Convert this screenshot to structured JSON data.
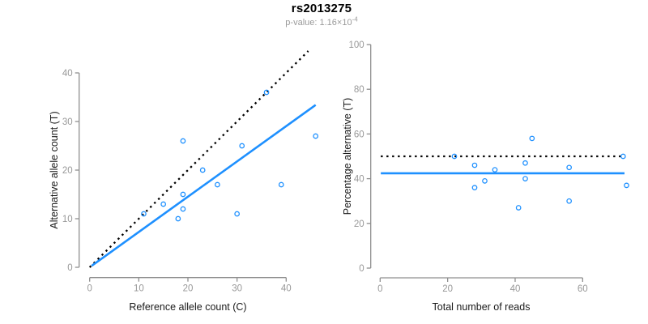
{
  "header": {
    "title": "rs2013275",
    "subtitle": {
      "text": "p-value: 1.16×10",
      "exponent": "-4"
    }
  },
  "colors": {
    "point_blue": "#1E90FF",
    "fit_blue": "#1E90FF",
    "dotted_black": "#000000",
    "axis_gray": "#8f8f8f",
    "tick_text_gray": "#989898"
  },
  "chart_data": [
    {
      "type": "scatter",
      "panel": "left",
      "xlabel": "Reference allele count (C)",
      "ylabel": "Alternative allele count (T)",
      "xlim": [
        0,
        46
      ],
      "ylim": [
        0,
        44.5
      ],
      "xticks": [
        0,
        10,
        20,
        30,
        40
      ],
      "yticks": [
        0,
        10,
        20,
        30,
        40
      ],
      "grid": false,
      "points": [
        [
          11,
          11
        ],
        [
          15,
          13
        ],
        [
          18,
          10
        ],
        [
          19,
          12
        ],
        [
          19,
          15
        ],
        [
          19,
          26
        ],
        [
          23,
          20
        ],
        [
          26,
          17
        ],
        [
          30,
          11
        ],
        [
          31,
          25
        ],
        [
          36,
          36
        ],
        [
          39,
          17
        ],
        [
          46,
          27
        ]
      ],
      "lines": [
        {
          "name": "identity-line",
          "style": "dotted",
          "color_key": "dotted_black",
          "x1": 0,
          "y1": 0,
          "x2": 44.5,
          "y2": 44.5
        },
        {
          "name": "fit-line",
          "style": "solid",
          "color_key": "fit_blue",
          "x1": 0.4,
          "y1": 0.3,
          "x2": 46,
          "y2": 33.4
        }
      ]
    },
    {
      "type": "scatter",
      "panel": "right",
      "xlabel": "Total number of reads",
      "ylabel": "Percentage alternative (T)",
      "xlim": [
        0,
        73.5
      ],
      "ylim": [
        0,
        100
      ],
      "xticks": [
        0,
        20,
        40,
        60
      ],
      "yticks": [
        0,
        20,
        40,
        60,
        80,
        100
      ],
      "grid": false,
      "points": [
        [
          22,
          50
        ],
        [
          28,
          46
        ],
        [
          28,
          36
        ],
        [
          31,
          39
        ],
        [
          34,
          44
        ],
        [
          41,
          27
        ],
        [
          43,
          47
        ],
        [
          43,
          40
        ],
        [
          45,
          58
        ],
        [
          56,
          45
        ],
        [
          56,
          30
        ],
        [
          72,
          50
        ],
        [
          73,
          37
        ]
      ],
      "lines": [
        {
          "name": "expected-line",
          "style": "dotted",
          "color_key": "dotted_black",
          "x1": 0.2,
          "y1": 50,
          "x2": 72.4,
          "y2": 50
        },
        {
          "name": "fit-line",
          "style": "solid",
          "color_key": "fit_blue",
          "x1": 0.2,
          "y1": 42.4,
          "x2": 72.4,
          "y2": 42.4
        }
      ]
    }
  ]
}
